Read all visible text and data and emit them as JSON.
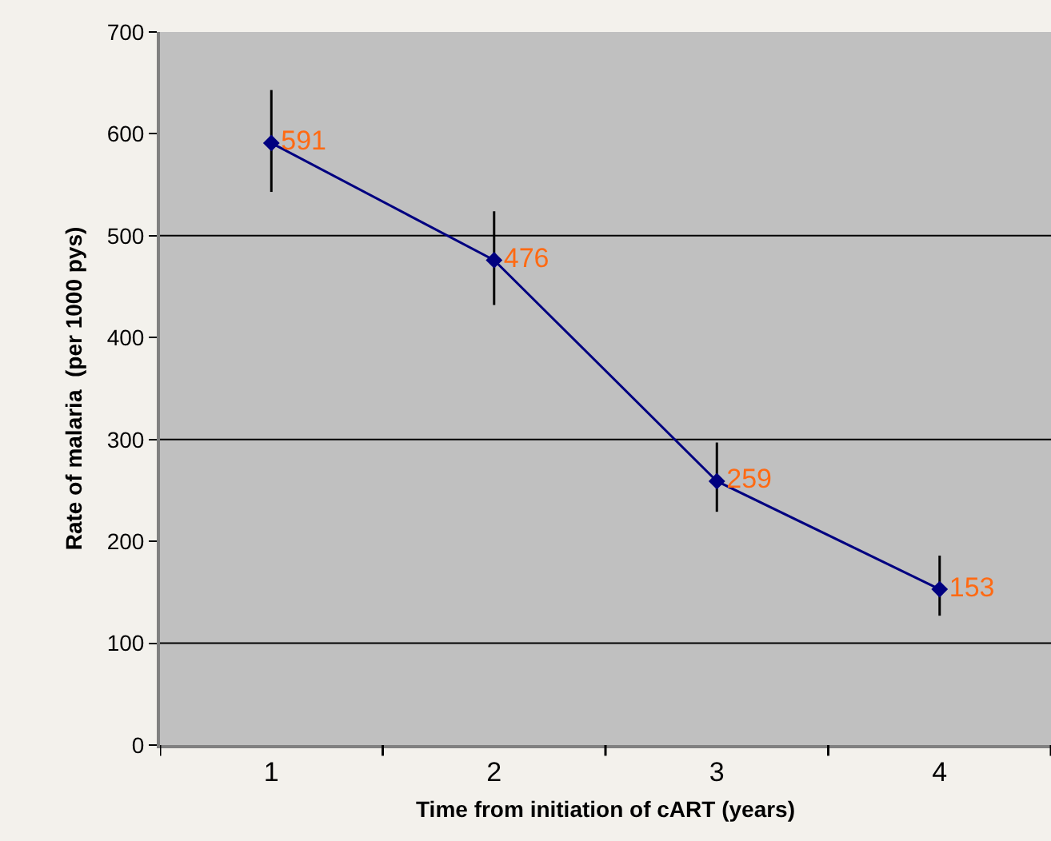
{
  "chart_data": {
    "type": "line",
    "xlabel": "Time from initiation of cART (years)",
    "ylabel": "Rate of malaria  (per 1000 pys)",
    "categories": [
      "1",
      "2",
      "3",
      "4"
    ],
    "series": [
      {
        "color": "#000080",
        "values": [
          591,
          476,
          259,
          153
        ],
        "errors": [
          [
            543,
            643
          ],
          [
            432,
            524
          ],
          [
            229,
            297
          ],
          [
            127,
            186
          ]
        ]
      }
    ],
    "data_labels": true,
    "marker": "diamond",
    "line_style": "solid",
    "ylim": [
      0,
      700
    ],
    "yticks": [
      0,
      100,
      200,
      300,
      400,
      500,
      600,
      700
    ],
    "grid": false,
    "ref_lines": [
      {
        "axis": "y",
        "value": 100,
        "color": "#000000"
      },
      {
        "axis": "y",
        "value": 300,
        "color": "#000000"
      },
      {
        "axis": "y",
        "value": 500,
        "color": "#000000"
      }
    ]
  }
}
